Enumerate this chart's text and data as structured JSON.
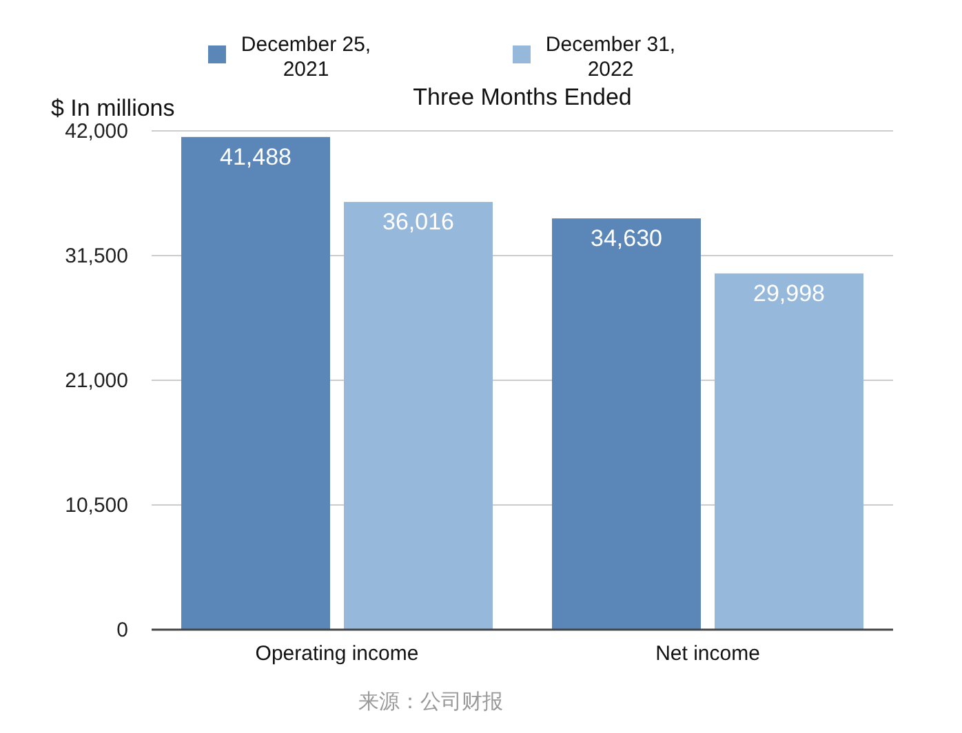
{
  "chart_data": {
    "type": "bar",
    "title": "Three Months Ended",
    "ylabel": "$ In millions",
    "categories": [
      "Operating income",
      "Net income"
    ],
    "series": [
      {
        "name": "December 25, 2021",
        "color": "#5b86b8",
        "values": [
          41488,
          34630
        ],
        "value_labels": [
          "41,488",
          "34,630"
        ]
      },
      {
        "name": "December 31, 2022",
        "color": "#95b8db",
        "values": [
          36016,
          29998
        ],
        "value_labels": [
          "36,016",
          "29,998"
        ]
      }
    ],
    "ylim": [
      0,
      42000
    ],
    "yticks": [
      0,
      {
        "value": 10500,
        "label": "10,500"
      },
      {
        "value": 21000,
        "label": "21,000"
      },
      {
        "value": 31500,
        "label": "31,500"
      },
      {
        "value": 42000,
        "label": "42,000"
      }
    ],
    "grid": "y",
    "legend": "top",
    "annotations": [
      "来源：公司财报"
    ]
  }
}
